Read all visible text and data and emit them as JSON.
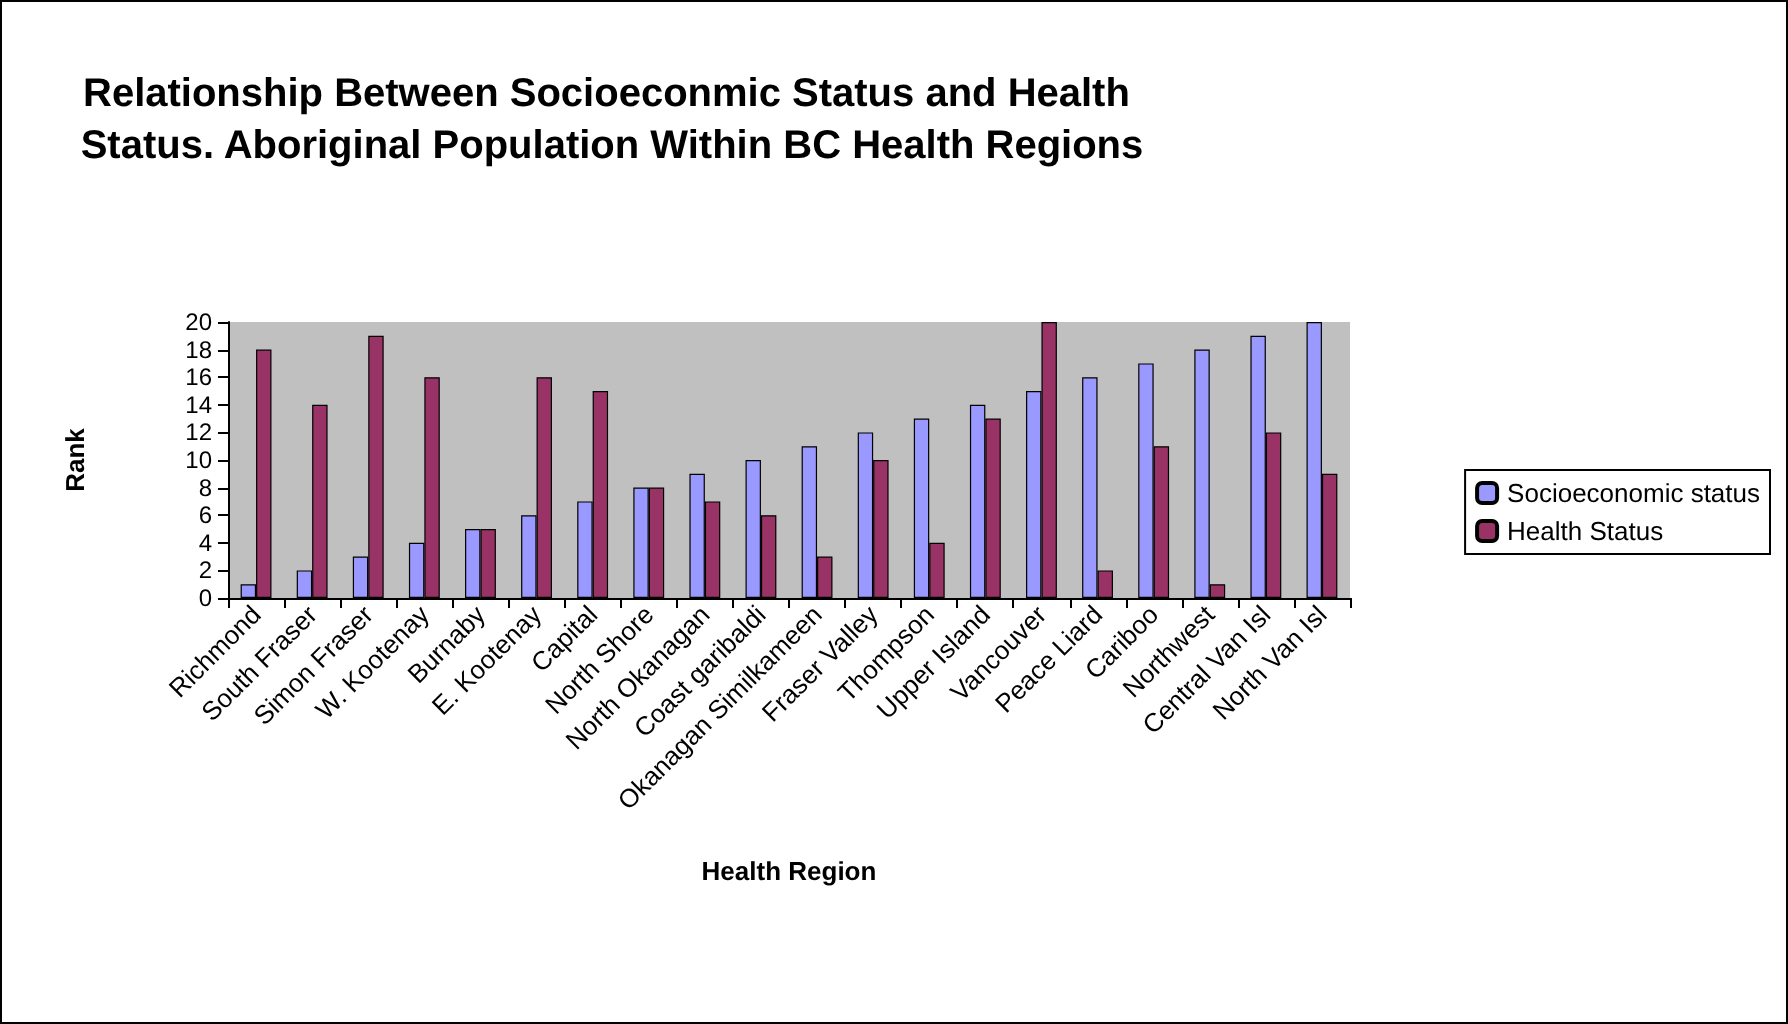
{
  "chart_data": {
    "type": "bar",
    "title": "Relationship Between Socioeconmic Status and Health Status. Aboriginal Population Within BC Health Regions",
    "xlabel": "Health Region",
    "ylabel": "Rank",
    "categories": [
      "Richmond",
      "South Fraser",
      "Simon Fraser",
      "W. Kootenay",
      "Burnaby",
      "E. Kootenay",
      "Capital",
      "North Shore",
      "North Okanagan",
      "Coast garibaldi",
      "Okanagan Similkameen",
      "Fraser Valley",
      "Thompson",
      "Upper Island",
      "Vancouver",
      "Peace Liard",
      "Cariboo",
      "Northwest",
      "Central Van Isl",
      "North Van Isl"
    ],
    "series": [
      {
        "name": "Socioeconomic status",
        "color": "#9999ff",
        "values": [
          1,
          2,
          3,
          4,
          5,
          6,
          7,
          8,
          9,
          10,
          11,
          12,
          13,
          14,
          15,
          16,
          17,
          18,
          19,
          20
        ]
      },
      {
        "name": "Health Status",
        "color": "#993366",
        "values": [
          18,
          14,
          19,
          16,
          5,
          16,
          15,
          8,
          7,
          6,
          3,
          10,
          4,
          13,
          20,
          2,
          11,
          1,
          12,
          9
        ]
      }
    ],
    "ylim": [
      0,
      20
    ],
    "yticks": [
      0,
      2,
      4,
      6,
      8,
      10,
      12,
      14,
      16,
      18,
      20
    ],
    "grid": false,
    "legend": "right"
  }
}
